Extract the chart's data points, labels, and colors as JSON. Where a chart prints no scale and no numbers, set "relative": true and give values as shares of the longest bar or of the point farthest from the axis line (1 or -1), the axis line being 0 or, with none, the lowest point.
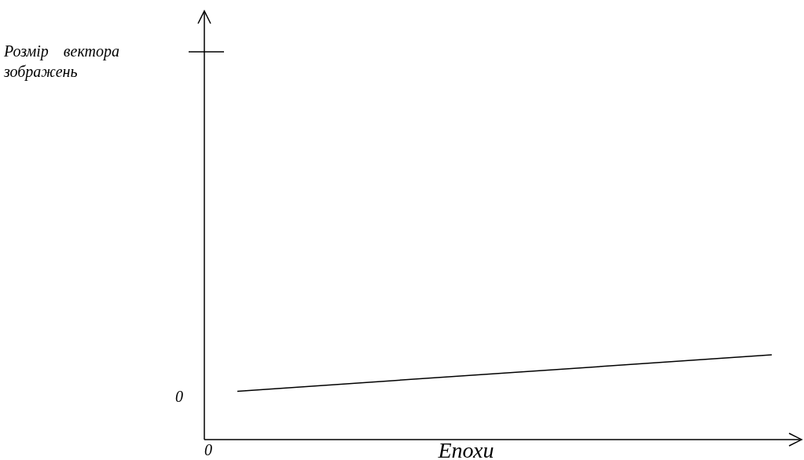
{
  "chart_data": {
    "type": "line",
    "relative": true,
    "xlabel": "Епохи",
    "categories": [
      null,
      null
    ],
    "series": [
      {
        "color": "#000000",
        "values": [
          0.57,
          1
        ]
      }
    ],
    "annotations": [
      "Розмір вектора зображень",
      "0",
      "0"
    ]
  }
}
